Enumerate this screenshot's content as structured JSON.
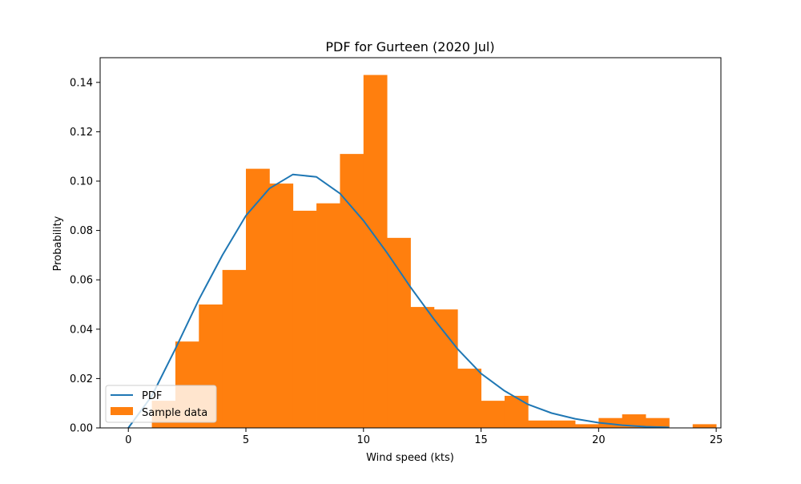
{
  "chart_data": {
    "type": "bar",
    "title": "PDF for Gurteen (2020 Jul)",
    "xlabel": "Wind speed (kts)",
    "ylabel": "Probability",
    "xlim": [
      -1.2,
      25.2
    ],
    "ylim": [
      0,
      0.15
    ],
    "xticks": [
      0,
      5,
      10,
      15,
      20,
      25
    ],
    "xtick_labels": [
      "0",
      "5",
      "10",
      "15",
      "20",
      "25"
    ],
    "yticks": [
      0.0,
      0.02,
      0.04,
      0.06,
      0.08,
      0.1,
      0.12,
      0.14
    ],
    "ytick_labels": [
      "0.00",
      "0.02",
      "0.04",
      "0.06",
      "0.08",
      "0.10",
      "0.12",
      "0.14"
    ],
    "grid": false,
    "legend_position": "lower-left",
    "legend": [
      "PDF",
      "Sample data"
    ],
    "colors": {
      "pdf": "#1f77b4",
      "sample": "#ff7f0e"
    },
    "series": [
      {
        "name": "Sample data",
        "kind": "histogram",
        "bin_edges": [
          1,
          2,
          3,
          4,
          5,
          6,
          7,
          8,
          9,
          10,
          11,
          12,
          13,
          14,
          15,
          16,
          17,
          18,
          19,
          20,
          21,
          22,
          23,
          24,
          25
        ],
        "values": [
          0.011,
          0.035,
          0.05,
          0.064,
          0.105,
          0.099,
          0.088,
          0.091,
          0.111,
          0.143,
          0.077,
          0.049,
          0.048,
          0.024,
          0.011,
          0.013,
          0.003,
          0.003,
          0.0015,
          0.004,
          0.0055,
          0.004,
          0.0,
          0.0015
        ]
      },
      {
        "name": "PDF",
        "kind": "line",
        "x": [
          0,
          1,
          2,
          3,
          4,
          5,
          6,
          7,
          8,
          9,
          10,
          11,
          12,
          13,
          14,
          15,
          16,
          17,
          18,
          19,
          20,
          21,
          22,
          23
        ],
        "values": [
          0.0,
          0.013,
          0.032,
          0.052,
          0.07,
          0.086,
          0.097,
          0.1027,
          0.1017,
          0.095,
          0.084,
          0.071,
          0.057,
          0.044,
          0.032,
          0.022,
          0.015,
          0.0095,
          0.006,
          0.0037,
          0.0021,
          0.0011,
          0.0005,
          0.0002
        ]
      }
    ]
  }
}
